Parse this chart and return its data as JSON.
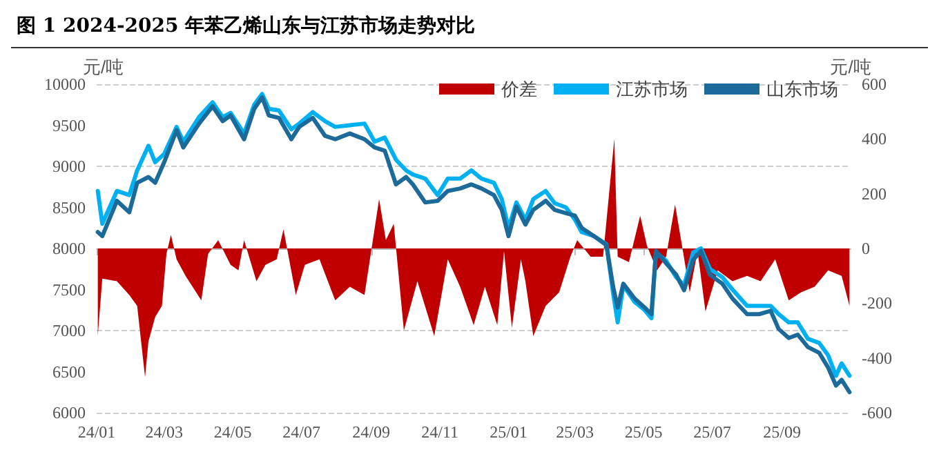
{
  "chart_data": {
    "type": "line",
    "title": "图 1 2024-2025 年苯乙烯山东与江苏市场走势对比",
    "ylabel": "元/吨",
    "y2label": "元/吨",
    "xlim": [
      "2024-01-01",
      "2025-11-01"
    ],
    "xticks": [
      {
        "value": "2024-01",
        "label": "24/01"
      },
      {
        "value": "2024-03",
        "label": "24/03"
      },
      {
        "value": "2024-05",
        "label": "24/05"
      },
      {
        "value": "2024-07",
        "label": "24/07"
      },
      {
        "value": "2024-09",
        "label": "24/09"
      },
      {
        "value": "2024-11",
        "label": "24/11"
      },
      {
        "value": "2025-01",
        "label": "25/01"
      },
      {
        "value": "2025-03",
        "label": "25/03"
      },
      {
        "value": "2025-05",
        "label": "25/05"
      },
      {
        "value": "2025-07",
        "label": "25/07"
      },
      {
        "value": "2025-09",
        "label": "25/09"
      }
    ],
    "ylim": [
      6000,
      10000
    ],
    "yticks": [
      6000,
      6500,
      7000,
      7500,
      8000,
      8500,
      9000,
      9500,
      10000
    ],
    "y2lim": [
      -600,
      600
    ],
    "y2ticks": [
      -600,
      -400,
      -200,
      0,
      200,
      400,
      600
    ],
    "grid": "y",
    "legend": "top right",
    "series": [
      {
        "name": "价差",
        "type": "area",
        "axis": "y2",
        "color": "#c00000",
        "x": [
          "2024-01-02",
          "2024-01-06",
          "2024-01-19",
          "2024-01-30",
          "2024-02-06",
          "2024-02-13",
          "2024-02-16",
          "2024-02-22",
          "2024-02-28",
          "2024-03-03",
          "2024-03-07",
          "2024-03-12",
          "2024-03-20",
          "2024-04-03",
          "2024-04-09",
          "2024-04-18",
          "2024-04-29",
          "2024-05-06",
          "2024-05-11",
          "2024-05-22",
          "2024-05-30",
          "2024-06-09",
          "2024-06-15",
          "2024-06-26",
          "2024-07-04",
          "2024-07-17",
          "2024-07-31",
          "2024-08-13",
          "2024-08-26",
          "2024-09-08",
          "2024-09-14",
          "2024-09-21",
          "2024-09-30",
          "2024-10-12",
          "2024-10-27",
          "2024-11-08",
          "2024-11-19",
          "2024-12-01",
          "2024-12-11",
          "2024-12-22",
          "2024-12-28",
          "2025-01-04",
          "2025-01-12",
          "2025-01-16",
          "2025-01-23",
          "2025-02-03",
          "2025-02-15",
          "2025-02-25",
          "2025-03-03",
          "2025-03-15",
          "2025-03-26",
          "2025-04-05",
          "2025-04-08",
          "2025-04-18",
          "2025-04-28",
          "2025-05-04",
          "2025-05-13",
          "2025-05-21",
          "2025-05-29",
          "2025-06-05",
          "2025-06-11",
          "2025-06-18",
          "2025-06-25",
          "2025-07-06",
          "2025-07-19",
          "2025-08-01",
          "2025-08-13",
          "2025-08-26",
          "2025-09-07",
          "2025-09-18",
          "2025-09-30",
          "2025-10-12",
          "2025-10-24",
          "2025-10-31"
        ],
        "values": [
          -320,
          -110,
          -120,
          -170,
          -210,
          -470,
          -340,
          -250,
          -210,
          -20,
          50,
          -40,
          -100,
          -190,
          -20,
          30,
          -60,
          -80,
          30,
          -120,
          -60,
          -40,
          70,
          -170,
          -60,
          -40,
          -190,
          -140,
          -170,
          180,
          30,
          90,
          -300,
          -120,
          -320,
          -40,
          -140,
          -280,
          -140,
          -280,
          -10,
          -290,
          -40,
          -120,
          -320,
          -210,
          -160,
          -30,
          30,
          -30,
          -30,
          400,
          -30,
          -50,
          120,
          10,
          -80,
          -30,
          160,
          -10,
          -160,
          -10,
          -230,
          -80,
          -120,
          -100,
          -120,
          -40,
          -190,
          -160,
          -140,
          -80,
          -100,
          -210
        ]
      },
      {
        "name": "江苏市场",
        "color": "#00b0f0",
        "x": [
          "2024-01-02",
          "2024-01-06",
          "2024-01-19",
          "2024-01-30",
          "2024-02-06",
          "2024-02-16",
          "2024-02-22",
          "2024-03-01",
          "2024-03-12",
          "2024-03-18",
          "2024-04-01",
          "2024-04-13",
          "2024-04-22",
          "2024-04-29",
          "2024-05-11",
          "2024-05-20",
          "2024-05-27",
          "2024-06-02",
          "2024-06-11",
          "2024-06-22",
          "2024-06-29",
          "2024-07-11",
          "2024-07-22",
          "2024-07-31",
          "2024-08-13",
          "2024-08-26",
          "2024-09-04",
          "2024-09-13",
          "2024-09-23",
          "2024-10-02",
          "2024-10-08",
          "2024-10-19",
          "2024-10-30",
          "2024-11-08",
          "2024-11-19",
          "2024-11-29",
          "2024-12-08",
          "2024-12-19",
          "2024-12-26",
          "2025-01-01",
          "2025-01-08",
          "2025-01-16",
          "2025-01-23",
          "2025-02-03",
          "2025-02-11",
          "2025-02-21",
          "2025-03-01",
          "2025-03-07",
          "2025-03-18",
          "2025-03-29",
          "2025-04-04",
          "2025-04-08",
          "2025-04-13",
          "2025-04-23",
          "2025-05-02",
          "2025-05-08",
          "2025-05-12",
          "2025-05-21",
          "2025-05-30",
          "2025-06-06",
          "2025-06-14",
          "2025-06-21",
          "2025-06-29",
          "2025-07-10",
          "2025-07-19",
          "2025-08-01",
          "2025-08-12",
          "2025-08-22",
          "2025-08-29",
          "2025-09-07",
          "2025-09-15",
          "2025-09-24",
          "2025-10-04",
          "2025-10-12",
          "2025-10-19",
          "2025-10-24",
          "2025-10-31"
        ],
        "values": [
          8700,
          8300,
          8700,
          8650,
          8950,
          9250,
          9050,
          9150,
          9480,
          9300,
          9600,
          9780,
          9600,
          9650,
          9400,
          9750,
          9880,
          9700,
          9680,
          9450,
          9520,
          9660,
          9550,
          9480,
          9500,
          9520,
          9300,
          9350,
          9080,
          8950,
          8900,
          8850,
          8650,
          8850,
          8850,
          8950,
          8850,
          8800,
          8600,
          8250,
          8560,
          8350,
          8600,
          8700,
          8550,
          8500,
          8350,
          8200,
          8150,
          8050,
          7450,
          7100,
          7550,
          7350,
          7250,
          7150,
          7950,
          7850,
          7650,
          7550,
          7950,
          8000,
          7750,
          7650,
          7500,
          7300,
          7300,
          7300,
          7200,
          7100,
          7100,
          6900,
          6850,
          6700,
          6450,
          6600,
          6450
        ]
      },
      {
        "name": "山东市场",
        "color": "#1c6a9a",
        "x": [
          "2024-01-02",
          "2024-01-06",
          "2024-01-19",
          "2024-01-30",
          "2024-02-06",
          "2024-02-16",
          "2024-02-22",
          "2024-03-01",
          "2024-03-12",
          "2024-03-18",
          "2024-04-01",
          "2024-04-13",
          "2024-04-22",
          "2024-04-29",
          "2024-05-11",
          "2024-05-20",
          "2024-05-27",
          "2024-06-02",
          "2024-06-11",
          "2024-06-22",
          "2024-06-29",
          "2024-07-11",
          "2024-07-22",
          "2024-07-31",
          "2024-08-13",
          "2024-08-26",
          "2024-09-04",
          "2024-09-13",
          "2024-09-23",
          "2024-10-02",
          "2024-10-08",
          "2024-10-19",
          "2024-10-30",
          "2024-11-08",
          "2024-11-19",
          "2024-11-29",
          "2024-12-08",
          "2024-12-19",
          "2024-12-26",
          "2025-01-01",
          "2025-01-08",
          "2025-01-16",
          "2025-01-23",
          "2025-02-03",
          "2025-02-11",
          "2025-02-21",
          "2025-03-01",
          "2025-03-07",
          "2025-03-18",
          "2025-03-29",
          "2025-04-04",
          "2025-04-08",
          "2025-04-13",
          "2025-04-23",
          "2025-05-02",
          "2025-05-08",
          "2025-05-12",
          "2025-05-21",
          "2025-05-30",
          "2025-06-06",
          "2025-06-14",
          "2025-06-21",
          "2025-06-29",
          "2025-07-10",
          "2025-07-19",
          "2025-08-01",
          "2025-08-12",
          "2025-08-22",
          "2025-08-29",
          "2025-09-07",
          "2025-09-15",
          "2025-09-24",
          "2025-10-04",
          "2025-10-12",
          "2025-10-19",
          "2025-10-24",
          "2025-10-31"
        ],
        "values": [
          8200,
          8150,
          8580,
          8440,
          8800,
          8870,
          8800,
          9050,
          9440,
          9230,
          9520,
          9730,
          9550,
          9620,
          9330,
          9700,
          9840,
          9620,
          9590,
          9330,
          9480,
          9590,
          9370,
          9330,
          9400,
          9330,
          9230,
          9190,
          8780,
          8870,
          8780,
          8560,
          8580,
          8700,
          8730,
          8780,
          8730,
          8650,
          8470,
          8150,
          8510,
          8290,
          8470,
          8580,
          8470,
          8430,
          8400,
          8250,
          8150,
          8040,
          7530,
          7280,
          7570,
          7390,
          7280,
          7200,
          7970,
          7820,
          7680,
          7490,
          7860,
          7970,
          7680,
          7570,
          7390,
          7200,
          7200,
          7240,
          7020,
          6910,
          6950,
          6800,
          6730,
          6550,
          6330,
          6400,
          6250
        ]
      }
    ]
  }
}
